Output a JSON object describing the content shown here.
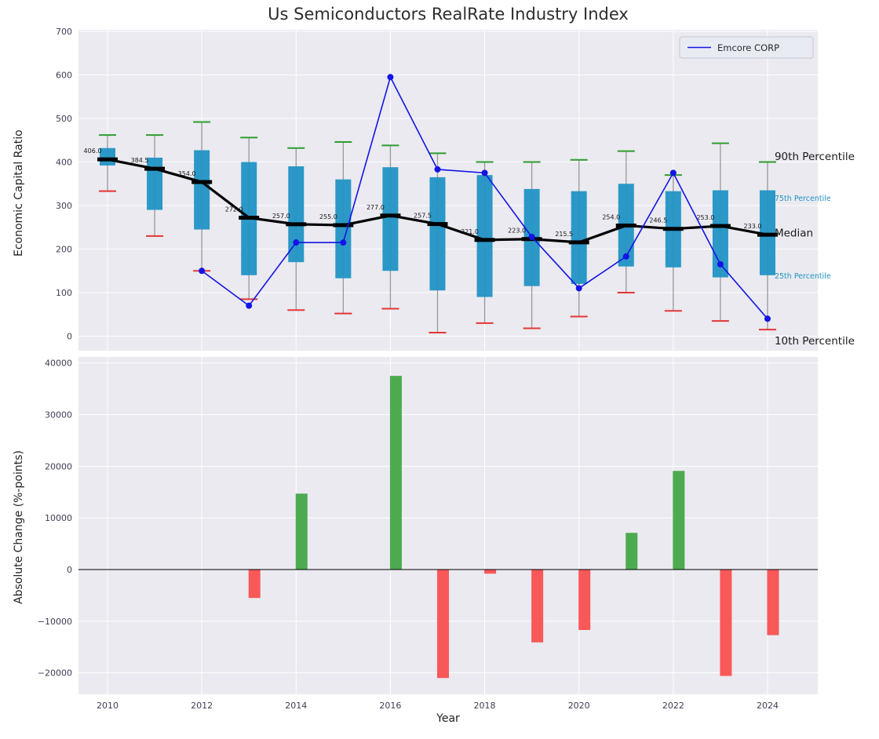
{
  "figure": {
    "title": "Us Semiconductors RealRate Industry Index",
    "background": "#ffffff",
    "plot_background": "#eaeaf0",
    "grid_color": "#ffffff"
  },
  "legend": {
    "entries": [
      {
        "label": "Emcore CORP",
        "color": "#1414e6",
        "type": "line"
      }
    ]
  },
  "top_axis": {
    "ylabel": "Economic Capital Ratio",
    "yticks": [
      0,
      100,
      200,
      300,
      400,
      500,
      600,
      700
    ]
  },
  "bottom_axis": {
    "ylabel": "Absolute Change (%-points)",
    "xlabel": "Year",
    "yticks": [
      -20000,
      -10000,
      0,
      10000,
      20000,
      30000,
      40000
    ],
    "xticks": [
      2010,
      2012,
      2014,
      2016,
      2018,
      2020,
      2022,
      2024
    ]
  },
  "percentile_labels": [
    {
      "text": "90th Percentile",
      "color": "#1a1a1a",
      "size": 13.5,
      "value": 412
    },
    {
      "text": "75th Percentile",
      "color": "#2193c4",
      "size": 9.5,
      "value": 318
    },
    {
      "text": "Median",
      "color": "#1a1a1a",
      "size": 13.5,
      "value": 236
    },
    {
      "text": "25th Percentile",
      "color": "#2193c4",
      "size": 9.5,
      "value": 140
    },
    {
      "text": "10th Percentile",
      "color": "#1a1a1a",
      "size": 13.5,
      "value": -12
    }
  ],
  "chart_data": [
    {
      "type": "boxplot+line",
      "title": "Us Semiconductors RealRate Industry Index",
      "ylabel": "Economic Capital Ratio",
      "ylim": [
        -33,
        704
      ],
      "grid": true,
      "years": [
        2010,
        2011,
        2012,
        2013,
        2014,
        2015,
        2016,
        2017,
        2018,
        2019,
        2020,
        2021,
        2022,
        2023,
        2024
      ],
      "percentiles": {
        "p10": [
          333,
          230,
          150,
          85,
          60,
          52,
          63,
          8,
          30,
          18,
          45,
          100,
          58,
          35,
          15
        ],
        "p25": [
          392,
          290,
          245,
          140,
          170,
          133,
          150,
          105,
          90,
          115,
          120,
          160,
          158,
          135,
          140
        ],
        "median": [
          406.0,
          384.5,
          354.0,
          272.0,
          257.0,
          255.0,
          277.0,
          257.5,
          221.0,
          223.0,
          215.5,
          254.0,
          246.5,
          253.0,
          233.0
        ],
        "p75": [
          432,
          410,
          427,
          400,
          390,
          360,
          388,
          365,
          370,
          338,
          333,
          350,
          333,
          335,
          335
        ],
        "p90": [
          462,
          462,
          492,
          456,
          432,
          446,
          438,
          420,
          400,
          400,
          405,
          425,
          370,
          443,
          400
        ]
      },
      "median_labels": [
        "406.0",
        "384.5",
        "354.0",
        "272.0",
        "257.0",
        "255.0",
        "277.0",
        "257.5",
        "221.0",
        "223.0",
        "215.5",
        "254.0",
        "246.5",
        "253.0",
        "233.0"
      ],
      "box_color": "#2193c4",
      "median_color": "#000000",
      "cap_top_color": "#2e9e2e",
      "cap_bottom_color": "#e53535",
      "whisker_color": "#999999",
      "series": [
        {
          "name": "Emcore CORP",
          "color": "#1414e6",
          "x": [
            2012,
            2013,
            2014,
            2015,
            2016,
            2017,
            2018,
            2019,
            2020,
            2021,
            2022,
            2023,
            2024
          ],
          "values": [
            150,
            70,
            215,
            215,
            595,
            383,
            375,
            228,
            110,
            183,
            375,
            165,
            40
          ]
        }
      ]
    },
    {
      "type": "bar",
      "ylabel": "Absolute Change (%-points)",
      "xlabel": "Year",
      "ylim": [
        -24100,
        41200
      ],
      "grid": true,
      "years": [
        2010,
        2011,
        2012,
        2013,
        2014,
        2015,
        2016,
        2017,
        2018,
        2019,
        2020,
        2021,
        2022,
        2023,
        2024
      ],
      "values": [
        null,
        null,
        null,
        -5500,
        14700,
        null,
        37500,
        -21000,
        -800,
        -14100,
        -11700,
        7100,
        19100,
        -20600,
        -12700
      ],
      "positive_color": "#38a038",
      "negative_color": "#fb4343"
    }
  ]
}
